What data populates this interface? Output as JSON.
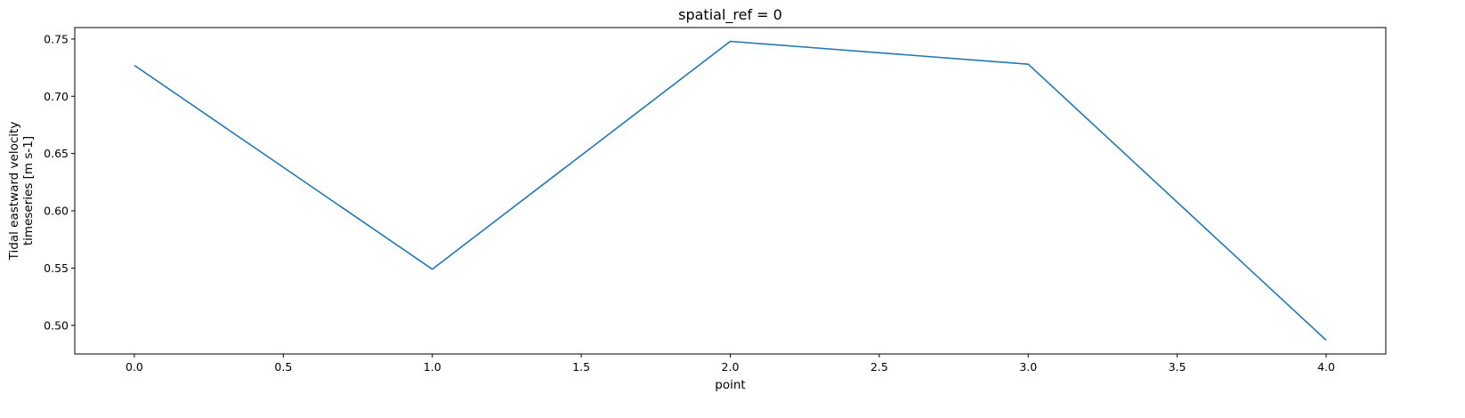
{
  "chart_data": {
    "type": "line",
    "title": "spatial_ref = 0",
    "xlabel": "point",
    "ylabel_lines": [
      "Tidal eastward velocity",
      "timeseries [m s-1]"
    ],
    "x": [
      0,
      1,
      2,
      3,
      4
    ],
    "series": [
      {
        "values": [
          0.727,
          0.549,
          0.748,
          0.728,
          0.487
        ],
        "color": "#1f77b4"
      }
    ],
    "xlim": [
      -0.2,
      4.2
    ],
    "ylim": [
      0.475,
      0.76
    ],
    "xticks": [
      "0.0",
      "0.5",
      "1.0",
      "1.5",
      "2.0",
      "2.5",
      "3.0",
      "3.5",
      "4.0"
    ],
    "yticks": [
      "0.50",
      "0.55",
      "0.60",
      "0.65",
      "0.70",
      "0.75"
    ],
    "grid": false
  }
}
